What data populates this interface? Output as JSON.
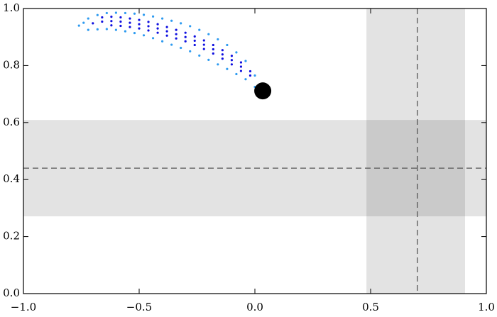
{
  "chart_data": {
    "type": "scatter",
    "xlim": [
      -1,
      1
    ],
    "ylim": [
      0,
      1
    ],
    "xticks": [
      {
        "value": -1,
        "label": "−1.0"
      },
      {
        "value": -0.5,
        "label": "−0.5"
      },
      {
        "value": 0,
        "label": "0.0"
      },
      {
        "value": 0.5,
        "label": "0.5"
      },
      {
        "value": 1,
        "label": "1.0"
      }
    ],
    "yticks": [
      {
        "value": 0,
        "label": "0.0"
      },
      {
        "value": 0.2,
        "label": "0.2"
      },
      {
        "value": 0.4,
        "label": "0.4"
      },
      {
        "value": 0.6,
        "label": "0.6"
      },
      {
        "value": 0.8,
        "label": "0.8"
      },
      {
        "value": 1,
        "label": "1.0"
      }
    ],
    "bands": [
      {
        "axis": "y",
        "range": [
          0.271,
          0.609
        ],
        "center": 0.44
      },
      {
        "axis": "x",
        "range": [
          0.482,
          0.908
        ],
        "center": 0.702
      }
    ],
    "series": [
      {
        "color": "#2e9bf0",
        "marker": "dot",
        "x": [
          -0.76,
          -0.74,
          -0.72,
          -0.68,
          -0.64,
          -0.6,
          -0.56,
          -0.52,
          -0.48,
          -0.44,
          -0.4,
          -0.36,
          -0.32,
          -0.28,
          -0.24,
          -0.2,
          -0.16,
          -0.12,
          -0.08,
          -0.04,
          0,
          -0.72,
          -0.68,
          -0.64,
          -0.6,
          -0.56,
          -0.52,
          -0.48,
          -0.44,
          -0.4,
          -0.36,
          -0.32,
          -0.28,
          -0.24,
          -0.2,
          -0.16,
          -0.12,
          -0.08,
          -0.04,
          0
        ],
        "values": [
          0.94,
          0.95,
          0.965,
          0.977,
          0.984,
          0.985,
          0.984,
          0.982,
          0.978,
          0.972,
          0.965,
          0.957,
          0.948,
          0.938,
          0.925,
          0.91,
          0.892,
          0.872,
          0.846,
          0.816,
          0.765,
          0.925,
          0.927,
          0.928,
          0.925,
          0.92,
          0.914,
          0.906,
          0.896,
          0.885,
          0.873,
          0.862,
          0.85,
          0.835,
          0.82,
          0.804,
          0.788,
          0.77,
          0.752,
          0.725
        ]
      },
      {
        "color": "#1010e0",
        "marker": "dot",
        "x": [
          -0.7,
          -0.66,
          -0.62,
          -0.58,
          -0.54,
          -0.5,
          -0.46,
          -0.42,
          -0.38,
          -0.34,
          -0.3,
          -0.26,
          -0.22,
          -0.18,
          -0.14,
          -0.1,
          -0.06,
          -0.02,
          -0.66,
          -0.62,
          -0.58,
          -0.54,
          -0.5,
          -0.46,
          -0.42,
          -0.38,
          -0.34,
          -0.3,
          -0.26,
          -0.22,
          -0.18,
          -0.14,
          -0.1,
          -0.06,
          -0.02,
          -0.62,
          -0.58,
          -0.54,
          -0.5,
          -0.46,
          -0.42,
          -0.38,
          -0.34,
          -0.3,
          -0.26,
          -0.22,
          -0.18,
          -0.14,
          -0.1,
          -0.06
        ],
        "values": [
          0.948,
          0.954,
          0.956,
          0.954,
          0.95,
          0.945,
          0.938,
          0.93,
          0.92,
          0.91,
          0.9,
          0.887,
          0.873,
          0.857,
          0.839,
          0.819,
          0.796,
          0.765,
          0.969,
          0.971,
          0.969,
          0.965,
          0.96,
          0.953,
          0.945,
          0.935,
          0.925,
          0.915,
          0.902,
          0.888,
          0.872,
          0.854,
          0.834,
          0.811,
          0.78,
          0.941,
          0.939,
          0.935,
          0.93,
          0.923,
          0.915,
          0.905,
          0.895,
          0.885,
          0.872,
          0.858,
          0.842,
          0.824,
          0.804,
          0.781
        ]
      },
      {
        "color": "#000000",
        "marker": "large-dot",
        "x": [
          0.034
        ],
        "values": [
          0.711
        ]
      }
    ]
  }
}
